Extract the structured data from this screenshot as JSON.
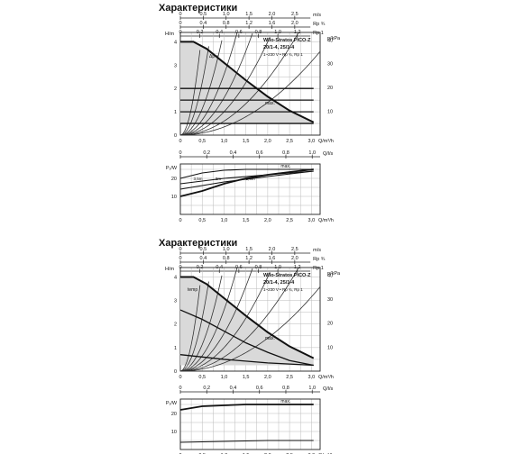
{
  "sections": [
    {
      "title": "Характеристики",
      "scale_top": {
        "ms": {
          "unit": "m/s",
          "ticks": [
            "0",
            "0,5",
            "1,0",
            "1,5",
            "2,0",
            "2,5"
          ]
        },
        "rp": {
          "unit": "Rp ¾",
          "ticks": [
            "0",
            "0,4",
            "0,8",
            "1,2",
            "1,6",
            "2,0"
          ]
        },
        "rp1": {
          "unit": "Rp 1",
          "ticks": [
            "0",
            "0,2",
            "0,4",
            "0,6",
            "0,8",
            "1,0",
            "1,2"
          ]
        }
      },
      "info": {
        "line1": "Wilo-Stratos PICO-Z",
        "line2": "20/1-4, 25/1-4",
        "line3": "1~230 V • Rp ¾, Rp 1"
      },
      "mode_labels": {
        "dp_v": "Δp-v",
        "max": "max."
      }
    },
    {
      "title": "Характеристики",
      "scale_top": {
        "ms": {
          "unit": "m/s",
          "ticks": [
            "0",
            "0,5",
            "1,0",
            "1,5",
            "2,0",
            "2,5"
          ]
        },
        "rp": {
          "unit": "Rp ¾",
          "ticks": [
            "0",
            "0,4",
            "0,8",
            "1,2",
            "1,6",
            "2,0"
          ]
        },
        "rp1": {
          "unit": "Rp 1",
          "ticks": [
            "0",
            "0,2",
            "0,4",
            "0,6",
            "0,8",
            "1,0",
            "1,2"
          ]
        }
      },
      "info": {
        "line1": "Wilo-Stratos PICO-Z",
        "line2": "20/1-4, 25/1-4",
        "line3": "1~230 V • Rp ¾, Rp 1"
      },
      "mode_labels": {
        "temp": "temp",
        "max": "max."
      }
    }
  ],
  "chart_data": [
    {
      "type": "line",
      "title": "",
      "xlabel": "Q/m³/h",
      "ylabel": "H/m",
      "ylabel_right": "p/kPa",
      "xlim": [
        0,
        3.2
      ],
      "ylim": [
        0,
        4.4
      ],
      "x_ticks": [
        "0",
        "0,5",
        "1,0",
        "1,5",
        "2,0",
        "2,5",
        "3,0"
      ],
      "y_ticks": [
        "0",
        "1",
        "2",
        "3",
        "4"
      ],
      "y_right_ticks": [
        "10",
        "20",
        "30",
        "40"
      ],
      "series": [
        {
          "name": "max.",
          "points": [
            [
              0,
              4.0
            ],
            [
              0.3,
              4.0
            ],
            [
              0.6,
              3.7
            ],
            [
              1.0,
              3.1
            ],
            [
              1.5,
              2.35
            ],
            [
              2.0,
              1.65
            ],
            [
              2.5,
              1.05
            ],
            [
              3.05,
              0.55
            ]
          ]
        },
        {
          "name": "Δp-v",
          "points": [
            [
              0,
              0.5
            ],
            [
              3.05,
              0.5
            ]
          ]
        },
        {
          "points": [
            [
              0,
              2.0
            ],
            [
              3.05,
              2.0
            ]
          ]
        },
        {
          "points": [
            [
              0,
              1.5
            ],
            [
              3.05,
              1.5
            ]
          ]
        },
        {
          "points": [
            [
              0,
              1.0
            ],
            [
              3.05,
              1.0
            ]
          ]
        }
      ],
      "system_curves": [
        [
          0,
          0.35
        ],
        [
          0,
          0.6
        ],
        [
          0,
          1.0
        ],
        [
          0,
          1.6
        ],
        [
          0,
          2.6
        ],
        [
          0,
          4.5
        ],
        [
          0,
          9
        ],
        [
          0,
          18
        ]
      ],
      "grid": true
    },
    {
      "type": "line",
      "xlabel": "Q/m³/h",
      "ylabel": "P₁/W",
      "xlim": [
        0,
        3.2
      ],
      "ylim": [
        0,
        28
      ],
      "x_ticks": [
        "0",
        "0,5",
        "1,0",
        "1,5",
        "2,0",
        "2,5",
        "3,0"
      ],
      "y_ticks": [
        "10",
        "20"
      ],
      "annotations": [
        "3,5m",
        "3m",
        "1,5m"
      ],
      "series": [
        {
          "name": "max.",
          "points": [
            [
              0,
              10
            ],
            [
              0.5,
              13
            ],
            [
              1.0,
              17
            ],
            [
              1.5,
              20
            ],
            [
              2.0,
              22
            ],
            [
              2.5,
              23.5
            ],
            [
              3.05,
              25
            ]
          ]
        },
        {
          "points": [
            [
              0,
              20
            ],
            [
              0.5,
              23
            ],
            [
              1.0,
              24.5
            ],
            [
              1.5,
              25
            ],
            [
              2.0,
              25
            ],
            [
              3.05,
              25
            ]
          ]
        },
        {
          "points": [
            [
              0,
              17
            ],
            [
              1.0,
              20
            ],
            [
              2.0,
              22
            ],
            [
              3.05,
              24
            ]
          ]
        },
        {
          "points": [
            [
              0,
              14
            ],
            [
              1.0,
              18
            ],
            [
              2.0,
              21
            ],
            [
              3.05,
              24
            ]
          ]
        }
      ],
      "grid": true
    },
    {
      "type": "line",
      "xlabel": "Q/m³/h",
      "ylabel": "H/m",
      "ylabel_right": "p/kPa",
      "xlim": [
        0,
        3.2
      ],
      "ylim": [
        0,
        4.4
      ],
      "x_ticks": [
        "0",
        "0,5",
        "1,0",
        "1,5",
        "2,0",
        "2,5",
        "3,0"
      ],
      "y_ticks": [
        "0",
        "1",
        "2",
        "3",
        "4"
      ],
      "y_right_ticks": [
        "10",
        "20",
        "30",
        "40"
      ],
      "series": [
        {
          "name": "max.",
          "points": [
            [
              0,
              4.0
            ],
            [
              0.3,
              4.0
            ],
            [
              0.6,
              3.7
            ],
            [
              1.0,
              3.1
            ],
            [
              1.5,
              2.35
            ],
            [
              2.0,
              1.65
            ],
            [
              2.5,
              1.05
            ],
            [
              3.05,
              0.55
            ]
          ]
        },
        {
          "name": "temp",
          "points": [
            [
              0,
              2.6
            ],
            [
              0.5,
              2.2
            ],
            [
              1.0,
              1.7
            ],
            [
              1.5,
              1.2
            ],
            [
              2.0,
              0.8
            ],
            [
              2.5,
              0.45
            ],
            [
              3.05,
              0.25
            ]
          ]
        },
        {
          "points": [
            [
              0,
              0.7
            ],
            [
              1.0,
              0.5
            ],
            [
              2.0,
              0.35
            ],
            [
              3.05,
              0.25
            ]
          ]
        }
      ],
      "system_curves": [
        [
          0,
          0.35
        ],
        [
          0,
          0.6
        ],
        [
          0,
          1.0
        ],
        [
          0,
          1.6
        ],
        [
          0,
          2.6
        ],
        [
          0,
          4.5
        ],
        [
          0,
          9
        ],
        [
          0,
          18
        ]
      ],
      "grid": true
    },
    {
      "type": "line",
      "xlabel": "Q/m³/h",
      "ylabel": "P₁/W",
      "xlim": [
        0,
        3.2
      ],
      "ylim": [
        0,
        28
      ],
      "x_ticks": [
        "0",
        "0,5",
        "1,0",
        "1,5",
        "2,0",
        "2,5",
        "3,0"
      ],
      "y_ticks": [
        "10",
        "20"
      ],
      "series": [
        {
          "name": "max.",
          "points": [
            [
              0,
              22
            ],
            [
              0.5,
              24
            ],
            [
              1.0,
              24.5
            ],
            [
              1.5,
              25
            ],
            [
              2.0,
              25
            ],
            [
              3.05,
              25
            ]
          ]
        },
        {
          "points": [
            [
              0,
              4
            ],
            [
              1.0,
              4.5
            ],
            [
              2.0,
              5
            ],
            [
              3.05,
              5
            ]
          ]
        }
      ],
      "grid": true
    }
  ]
}
